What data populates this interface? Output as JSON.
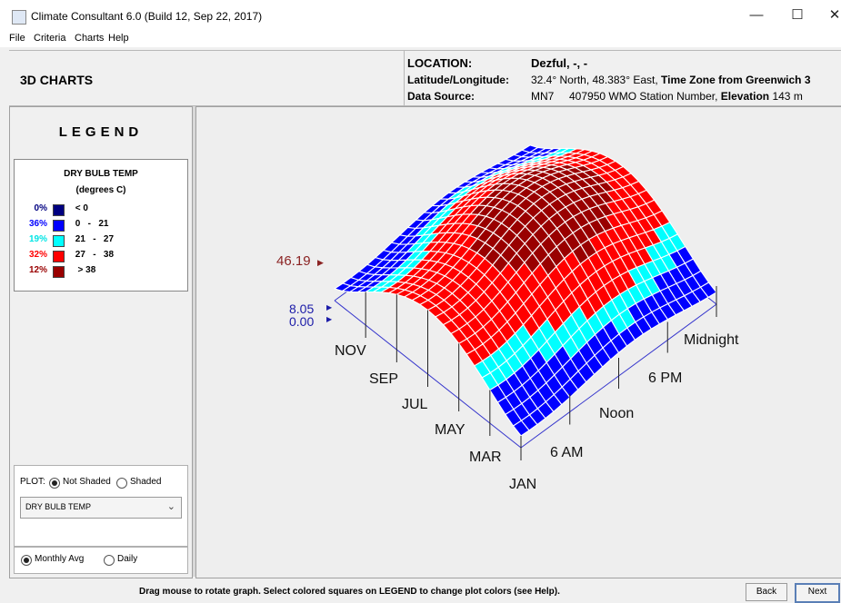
{
  "window": {
    "title": "Climate Consultant 6.0 (Build 12, Sep 22, 2017)",
    "minimize": "—",
    "maximize": "☐",
    "close": "✕"
  },
  "menu": [
    "File",
    "Criteria",
    "Charts",
    "Help"
  ],
  "header": {
    "page_title": "3D CHARTS",
    "location_label": "LOCATION:",
    "location_value": "Dezful, -, -",
    "latlon_label": "Latitude/Longitude:",
    "latlon_value": "32.4° North, 48.383° East, ",
    "timezone_label": "Time Zone from Greenwich 3",
    "source_label": "Data Source:",
    "source_value": "MN7     407950 WMO Station Number, ",
    "elevation_label": "Elevation",
    "elevation_value": " 143 m"
  },
  "legend": {
    "title": "LEGEND",
    "variable": "DRY BULB TEMP",
    "units": "(degrees C)",
    "rows": [
      {
        "pct": "0%",
        "color": "#000080",
        "range": " < 0"
      },
      {
        "pct": "36%",
        "color": "#0000ff",
        "range": " 0   -   21"
      },
      {
        "pct": "19%",
        "color": "#00ffff",
        "range": " 21   -   27"
      },
      {
        "pct": "32%",
        "color": "#ff0000",
        "range": " 27   -   38"
      },
      {
        "pct": "12%",
        "color": "#990000",
        "range": "  > 38"
      }
    ]
  },
  "plot_controls": {
    "plot_label": "PLOT:",
    "not_shaded": "Not Shaded",
    "shaded": "Shaded",
    "selected_shading": "Not Shaded",
    "variable_select": "DRY BULB TEMP",
    "monthly_avg": "Monthly Avg",
    "daily": "Daily",
    "selected_period": "Monthly Avg"
  },
  "chart": {
    "type": "3d-surface",
    "max_marker": "46.19",
    "min_marker": "8.05",
    "zero_marker": "0.00",
    "month_labels": [
      "NOV",
      "SEP",
      "JUL",
      "MAY",
      "MAR",
      "JAN"
    ],
    "hour_labels": [
      "Midnight",
      "6 PM",
      "Noon",
      "6 AM"
    ]
  },
  "footer": {
    "hint": "Drag mouse to rotate graph.  Select colored squares on LEGEND to change plot colors (see Help).",
    "back": "Back",
    "next": "Next"
  }
}
